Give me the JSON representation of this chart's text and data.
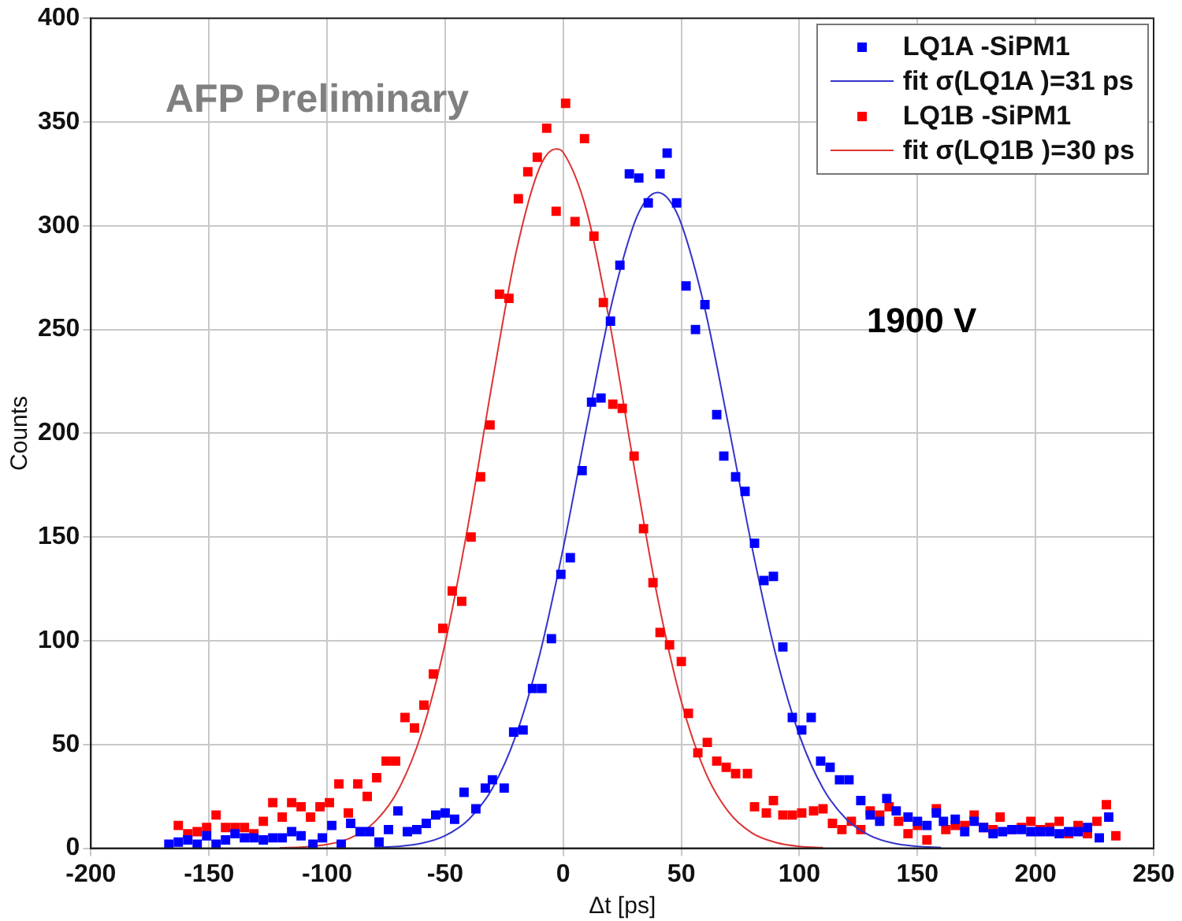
{
  "chart_data": {
    "type": "scatter",
    "xlabel": "Δt [ps]",
    "ylabel": "Counts",
    "xlim": [
      -200,
      250
    ],
    "xticks": [
      -200,
      -150,
      -100,
      -50,
      0,
      50,
      100,
      150,
      200,
      250
    ],
    "ylim": [
      0,
      400
    ],
    "yticks": [
      0,
      50,
      100,
      150,
      200,
      250,
      300,
      350,
      400
    ],
    "grid": true,
    "legend": "top right",
    "annotations": [
      "AFP Preliminary",
      "1900 V"
    ],
    "series": [
      {
        "name": "LQ1A -SiPM1",
        "type": "scatter",
        "marker": "square",
        "color": "#0000ff",
        "x": [
          -167,
          -163,
          -159,
          -155,
          -151,
          -147,
          -143,
          -139,
          -135,
          -131,
          -127,
          -123,
          -119,
          -115,
          -111,
          -106,
          -102,
          -98,
          -94,
          -90,
          -86,
          -82,
          -78,
          -74,
          -70,
          -66,
          -62,
          -58,
          -54,
          -50,
          -46,
          -42,
          -37,
          -33,
          -30,
          -25,
          -21,
          -17,
          -13,
          -9,
          -5,
          -1,
          3,
          8,
          12,
          16,
          20,
          24,
          28,
          32,
          36,
          41,
          44,
          48,
          52,
          56,
          60,
          65,
          68,
          73,
          77,
          81,
          85,
          89,
          93,
          97,
          101,
          105,
          109,
          113,
          117,
          121,
          126,
          130,
          134,
          137,
          141,
          146,
          150,
          154,
          158,
          161,
          166,
          170,
          174,
          178,
          182,
          186,
          190,
          194,
          198,
          202,
          206,
          210,
          214,
          218,
          222,
          227,
          231
        ],
        "values": [
          2,
          3,
          4,
          2,
          6,
          2,
          4,
          7,
          5,
          5,
          4,
          5,
          5,
          8,
          6,
          2,
          5,
          11,
          2,
          12,
          8,
          8,
          3,
          9,
          18,
          8,
          9,
          12,
          16,
          17,
          14,
          27,
          19,
          29,
          33,
          29,
          56,
          57,
          77,
          77,
          101,
          132,
          140,
          182,
          215,
          217,
          254,
          281,
          325,
          323,
          311,
          325,
          335,
          311,
          271,
          250,
          262,
          209,
          189,
          179,
          172,
          147,
          129,
          131,
          97,
          63,
          57,
          63,
          42,
          39,
          33,
          33,
          23,
          16,
          13,
          24,
          18,
          15,
          13,
          11,
          17,
          13,
          14,
          8,
          13,
          10,
          7,
          8,
          9,
          9,
          8,
          8,
          8,
          7,
          8,
          8,
          10,
          5,
          15
        ]
      },
      {
        "name": "fit σ(LQ1A )=31 ps",
        "type": "line",
        "marker": "none",
        "line_style": "solid",
        "color": "#3333cc",
        "x": [
          -80,
          -70,
          -60,
          -50,
          -40,
          -30,
          -20,
          -10,
          0,
          10,
          20,
          30,
          35,
          40,
          45,
          50,
          60,
          70,
          80,
          90,
          100,
          110,
          120,
          130,
          140,
          150,
          160
        ],
        "values": [
          0.3,
          0.9,
          2.4,
          6.1,
          13.9,
          28.9,
          54.5,
          93.2,
          144.7,
          203.6,
          259.9,
          300.9,
          312.2,
          316,
          312.2,
          300.9,
          259.9,
          203.6,
          144.7,
          93.2,
          54.5,
          28.9,
          13.9,
          6.1,
          2.4,
          0.9,
          0.3
        ]
      },
      {
        "name": "LQ1B -SiPM1",
        "type": "scatter",
        "marker": "square",
        "color": "#ff0000",
        "x": [
          -163,
          -159,
          -155,
          -151,
          -147,
          -143,
          -139,
          -135,
          -131,
          -127,
          -123,
          -119,
          -115,
          -111,
          -107,
          -103,
          -99,
          -95,
          -91,
          -87,
          -83,
          -79,
          -75,
          -71,
          -67,
          -63,
          -59,
          -55,
          -51,
          -47,
          -43,
          -39,
          -35,
          -31,
          -27,
          -23,
          -19,
          -15,
          -11,
          -7,
          -3,
          1,
          5,
          9,
          13,
          17,
          21,
          25,
          30,
          34,
          38,
          41,
          45,
          50,
          53,
          57,
          61,
          65,
          69,
          73,
          78,
          81,
          86,
          89,
          93,
          97,
          101,
          106,
          110,
          114,
          118,
          122,
          126,
          130,
          134,
          138,
          142,
          146,
          150,
          154,
          158,
          162,
          166,
          170,
          174,
          178,
          182,
          185,
          190,
          194,
          198,
          202,
          206,
          210,
          214,
          218,
          222,
          226,
          230,
          234
        ],
        "values": [
          11,
          7,
          8,
          10,
          16,
          10,
          10,
          10,
          7,
          13,
          22,
          15,
          22,
          20,
          15,
          20,
          22,
          31,
          17,
          31,
          25,
          34,
          42,
          42,
          63,
          58,
          69,
          84,
          106,
          124,
          119,
          150,
          179,
          204,
          267,
          265,
          313,
          326,
          333,
          347,
          307,
          359,
          302,
          342,
          295,
          263,
          214,
          212,
          189,
          154,
          128,
          104,
          98,
          90,
          65,
          46,
          51,
          42,
          39,
          36,
          36,
          20,
          17,
          23,
          16,
          16,
          17,
          18,
          19,
          12,
          9,
          13,
          9,
          18,
          16,
          20,
          13,
          7,
          11,
          4,
          19,
          9,
          11,
          11,
          16,
          10,
          9,
          15,
          9,
          10,
          13,
          9,
          10,
          13,
          7,
          11,
          7,
          13,
          21,
          6
        ]
      },
      {
        "name": "fit σ(LQ1B )=30 ps",
        "type": "line",
        "marker": "none",
        "line_style": "solid",
        "color": "#dd3333",
        "x": [
          -120,
          -110,
          -100,
          -90,
          -80,
          -70,
          -60,
          -50,
          -40,
          -30,
          -20,
          -10,
          -3,
          0,
          10,
          20,
          30,
          40,
          50,
          60,
          70,
          80,
          90,
          100,
          110
        ],
        "values": [
          0.2,
          0.6,
          1.8,
          5.0,
          12.5,
          27.8,
          55.4,
          98.8,
          157.5,
          224.8,
          287.0,
          328.0,
          337,
          335.3,
          306.8,
          251.2,
          184.0,
          120.6,
          70.8,
          37.2,
          17.5,
          7.3,
          2.8,
          0.9,
          0.3
        ]
      }
    ]
  }
}
